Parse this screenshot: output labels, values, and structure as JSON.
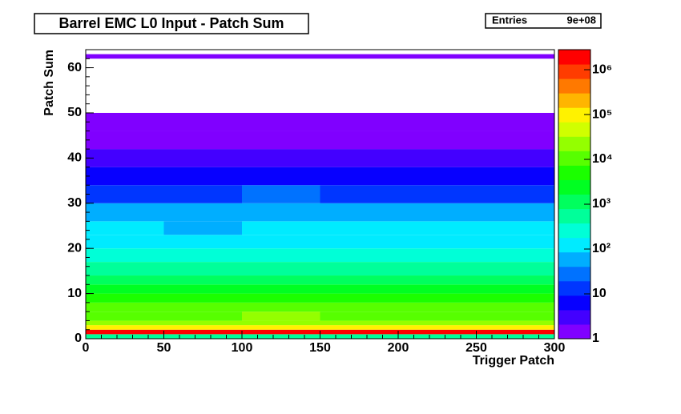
{
  "chart_data": {
    "type": "heatmap",
    "title": "Barrel EMC L0 Input - Patch Sum",
    "stats": {
      "label": "Entries",
      "value": {
        "value": 900000000,
        "label": "9e+08"
      }
    },
    "x_label": "Trigger Patch",
    "y_label": "Patch Sum",
    "xbins": [
      0,
      50,
      100,
      150,
      200,
      250,
      300
    ],
    "ybins": [
      0,
      1,
      2,
      3,
      4,
      6,
      8,
      10,
      12,
      14,
      17,
      20,
      23,
      26,
      30,
      34,
      38,
      42,
      46,
      50,
      62,
      63,
      64
    ],
    "z": [
      [
        500,
        400,
        600,
        500,
        450,
        500
      ],
      [
        2000000,
        1800000,
        2200000,
        2000000,
        1900000,
        2000000
      ],
      [
        100000,
        90000,
        110000,
        100000,
        95000,
        100000
      ],
      [
        30000,
        28000,
        32000,
        30000,
        29000,
        30000
      ],
      [
        15000,
        14000,
        16000,
        15000,
        14500,
        15000
      ],
      [
        8000,
        7500,
        8500,
        8000,
        7800,
        8000
      ],
      [
        4500,
        4200,
        4800,
        4500,
        4400,
        4500
      ],
      [
        2500,
        2300,
        2700,
        2500,
        2400,
        2500
      ],
      [
        1200,
        1100,
        1300,
        1200,
        1150,
        1200
      ],
      [
        600,
        550,
        650,
        600,
        580,
        600
      ],
      [
        300,
        280,
        320,
        300,
        290,
        300
      ],
      [
        160,
        150,
        170,
        160,
        155,
        160
      ],
      [
        90,
        85,
        95,
        90,
        88,
        90
      ],
      [
        45,
        42,
        48,
        45,
        44,
        45
      ],
      [
        18,
        16,
        20,
        18,
        17,
        18
      ],
      [
        7,
        6,
        8,
        7,
        7,
        7
      ],
      [
        3,
        3,
        3,
        3,
        3,
        3
      ],
      [
        2,
        2,
        2,
        2,
        2,
        2
      ],
      [
        1,
        1,
        1,
        1,
        1,
        1
      ],
      [
        null,
        null,
        null,
        null,
        null,
        null
      ],
      [
        2,
        2,
        2,
        2,
        2,
        2
      ],
      [
        null,
        null,
        null,
        null,
        null,
        null
      ]
    ],
    "xlim": [
      0,
      300
    ],
    "xticks": [
      0,
      50,
      100,
      150,
      200,
      250,
      300
    ],
    "ylim": [
      0,
      64
    ],
    "yticks": [
      0,
      10,
      20,
      30,
      40,
      50,
      60
    ],
    "zlim": [
      1,
      2800000
    ],
    "zlog": true,
    "palette_levels": 20,
    "zticks": [
      1,
      10,
      {
        "value": 100,
        "label": "10²"
      },
      {
        "value": 1000,
        "label": "10³"
      },
      {
        "value": 10000,
        "label": "10⁴"
      },
      {
        "value": 100000,
        "label": "10⁵"
      },
      {
        "value": 1000000,
        "label": "10⁶"
      }
    ]
  }
}
